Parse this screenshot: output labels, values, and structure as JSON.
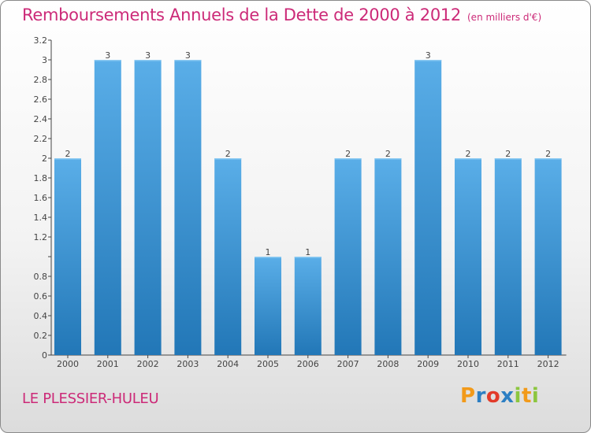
{
  "title": "Remboursements Annuels de la Dette de 2000 à 2012",
  "unit": "(en milliers d'€)",
  "town": "LE PLESSIER-HULEU",
  "logo": {
    "text": "Proxiti",
    "letters": [
      {
        "ch": "P",
        "color": "#f29a1a"
      },
      {
        "ch": "r",
        "color": "#2c7fc3"
      },
      {
        "ch": "o",
        "color": "#e23b2a"
      },
      {
        "ch": "x",
        "color": "#2c7fc3"
      },
      {
        "ch": "i",
        "color": "#8cc63f"
      },
      {
        "ch": "t",
        "color": "#f29a1a"
      },
      {
        "ch": "i",
        "color": "#8cc63f"
      }
    ]
  },
  "colors": {
    "title": "#cc2a78",
    "bar_light": "#5aaee8",
    "bar_dark": "#2277b7",
    "axis": "#444444"
  },
  "chart_data": {
    "type": "bar",
    "title": "Remboursements Annuels de la Dette de 2000 à 2012",
    "xlabel": "",
    "ylabel": "",
    "categories": [
      "2000",
      "2001",
      "2002",
      "2003",
      "2004",
      "2005",
      "2006",
      "2007",
      "2008",
      "2009",
      "2010",
      "2011",
      "2012"
    ],
    "values": [
      2,
      3,
      3,
      3,
      2,
      1,
      1,
      2,
      2,
      3,
      2,
      2,
      2
    ],
    "data_labels": [
      "2",
      "3",
      "3",
      "3",
      "2",
      "1",
      "1",
      "2",
      "2",
      "3",
      "2",
      "2",
      "2"
    ],
    "ylim": [
      0,
      3.2
    ],
    "yticks": [
      0,
      0.2,
      0.4,
      0.6,
      0.8,
      1,
      1.2,
      1.4,
      1.6,
      1.8,
      2,
      2.2,
      2.4,
      2.6,
      2.8,
      3,
      3.2
    ],
    "ytick_labels": [
      "0",
      "0.2",
      "0.4",
      "0.6",
      "0.8",
      "",
      "1.2",
      "1.4",
      "1.6",
      "1.8",
      "2",
      "2.2",
      "2.4",
      "2.6",
      "2.8",
      "3",
      "3.2"
    ],
    "grid": false
  }
}
